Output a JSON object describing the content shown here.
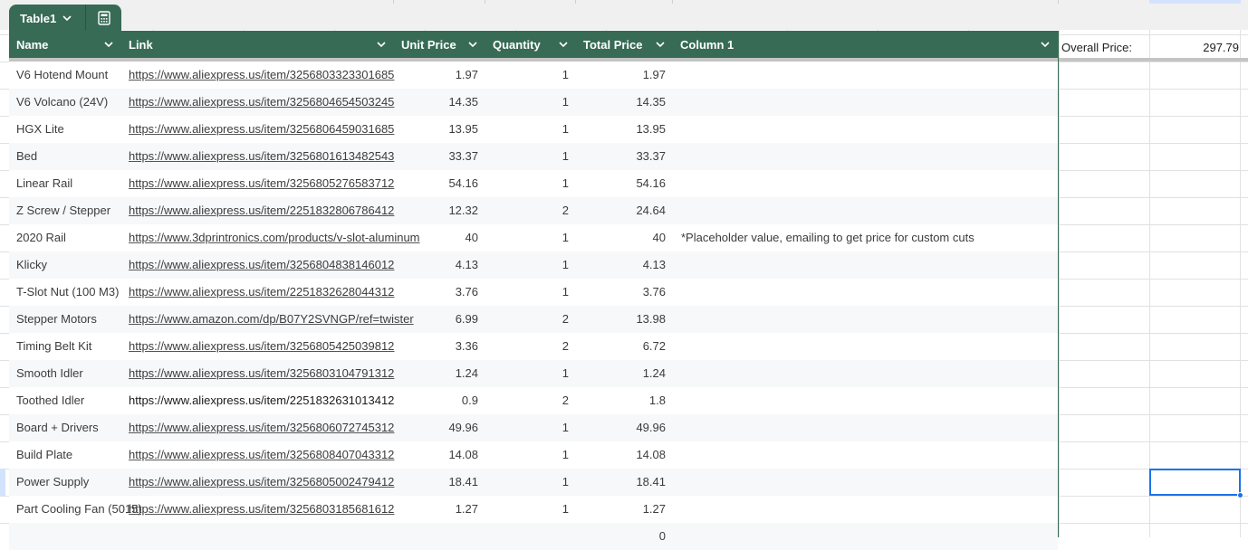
{
  "table": {
    "name": "Table1",
    "columns": [
      "Name",
      "Link",
      "Unit Price",
      "Quantity",
      "Total Price",
      "Column 1"
    ],
    "rows": [
      {
        "name": "V6 Hotend Mount",
        "link": "https://www.aliexpress.us/item/3256803323301685",
        "unit": "1.97",
        "qty": "1",
        "total": "1.97",
        "note": ""
      },
      {
        "name": "V6 Volcano (24V)",
        "link": "https://www.aliexpress.us/item/3256804654503245",
        "unit": "14.35",
        "qty": "1",
        "total": "14.35",
        "note": ""
      },
      {
        "name": "HGX Lite",
        "link": "https://www.aliexpress.us/item/3256806459031685",
        "unit": "13.95",
        "qty": "1",
        "total": "13.95",
        "note": ""
      },
      {
        "name": "Bed",
        "link": "https://www.aliexpress.us/item/3256801613482543",
        "unit": "33.37",
        "qty": "1",
        "total": "33.37",
        "note": ""
      },
      {
        "name": "Linear Rail",
        "link": "https://www.aliexpress.us/item/3256805276583712",
        "unit": "54.16",
        "qty": "1",
        "total": "54.16",
        "note": ""
      },
      {
        "name": "Z Screw / Stepper",
        "link": "https://www.aliexpress.us/item/2251832806786412",
        "unit": "12.32",
        "qty": "2",
        "total": "24.64",
        "note": ""
      },
      {
        "name": "2020 Rail",
        "link": "https://www.3dprintronics.com/products/v-slot-aluminum",
        "unit": "40",
        "qty": "1",
        "total": "40",
        "note": "*Placeholder value, emailing to get price for custom cuts"
      },
      {
        "name": "Klicky",
        "link": "https://www.aliexpress.us/item/3256804838146012",
        "unit": "4.13",
        "qty": "1",
        "total": "4.13",
        "note": ""
      },
      {
        "name": "T-Slot Nut (100 M3)",
        "link": "https://www.aliexpress.us/item/2251832628044312",
        "unit": "3.76",
        "qty": "1",
        "total": "3.76",
        "note": ""
      },
      {
        "name": "Stepper Motors",
        "link": "https://www.amazon.com/dp/B07Y2SVNGP/ref=twister",
        "unit": "6.99",
        "qty": "2",
        "total": "13.98",
        "note": ""
      },
      {
        "name": "Timing Belt Kit",
        "link": "https://www.aliexpress.us/item/3256805425039812",
        "unit": "3.36",
        "qty": "2",
        "total": "6.72",
        "note": ""
      },
      {
        "name": "Smooth Idler",
        "link": "https://www.aliexpress.us/item/3256803104791312",
        "unit": "1.24",
        "qty": "1",
        "total": "1.24",
        "note": ""
      },
      {
        "name": "Toothed Idler",
        "link": "https://www.aliexpress.us/item/2251832631013412",
        "unit": "0.9",
        "qty": "2",
        "total": "1.8",
        "note": "",
        "plain": true
      },
      {
        "name": "Board + Drivers",
        "link": "https://www.aliexpress.us/item/3256806072745312",
        "unit": "49.96",
        "qty": "1",
        "total": "49.96",
        "note": ""
      },
      {
        "name": "Build Plate",
        "link": "https://www.aliexpress.us/item/3256808407043312",
        "unit": "14.08",
        "qty": "1",
        "total": "14.08",
        "note": ""
      },
      {
        "name": "Power Supply",
        "link": "https://www.aliexpress.us/item/3256805002479412",
        "unit": "18.41",
        "qty": "1",
        "total": "18.41",
        "note": ""
      },
      {
        "name": "Part Cooling Fan (5015)",
        "link": "https://www.aliexpress.us/item/3256803185681612",
        "unit": "1.27",
        "qty": "1",
        "total": "1.27",
        "note": ""
      },
      {
        "name": "",
        "link": "",
        "unit": "",
        "qty": "",
        "total": "0",
        "note": ""
      }
    ]
  },
  "summary": {
    "label": "Overall Price:",
    "value": "297.79"
  },
  "icons": {
    "tab_menu": "chevron-down-icon",
    "calculator": "calculator-icon",
    "column_menu": "chevron-down-icon"
  },
  "colors": {
    "table_header": "#376b56",
    "selection": "#1a73e8",
    "row_stripe": "#f6f8f9"
  }
}
